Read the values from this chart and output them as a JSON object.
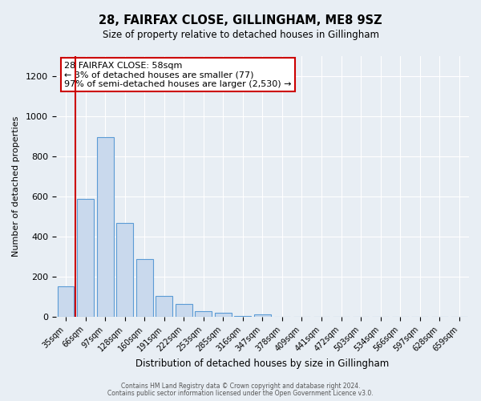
{
  "title": "28, FAIRFAX CLOSE, GILLINGHAM, ME8 9SZ",
  "subtitle": "Size of property relative to detached houses in Gillingham",
  "xlabel": "Distribution of detached houses by size in Gillingham",
  "ylabel": "Number of detached properties",
  "bar_color": "#c9d9ed",
  "bar_edge_color": "#5b9bd5",
  "background_color": "#e8eef4",
  "grid_color": "#ffffff",
  "annotation_box_color": "#ffffff",
  "annotation_box_edge": "#cc0000",
  "red_line_color": "#cc0000",
  "categories": [
    "35sqm",
    "66sqm",
    "97sqm",
    "128sqm",
    "160sqm",
    "191sqm",
    "222sqm",
    "253sqm",
    "285sqm",
    "316sqm",
    "347sqm",
    "378sqm",
    "409sqm",
    "441sqm",
    "472sqm",
    "503sqm",
    "534sqm",
    "566sqm",
    "597sqm",
    "628sqm",
    "659sqm"
  ],
  "values": [
    155,
    590,
    895,
    470,
    290,
    105,
    65,
    30,
    20,
    5,
    15,
    0,
    0,
    0,
    0,
    0,
    0,
    0,
    0,
    0,
    0
  ],
  "ylim": [
    0,
    1300
  ],
  "yticks": [
    0,
    200,
    400,
    600,
    800,
    1000,
    1200
  ],
  "annotation_text": "28 FAIRFAX CLOSE: 58sqm\n← 3% of detached houses are smaller (77)\n97% of semi-detached houses are larger (2,530) →",
  "footer_line1": "Contains HM Land Registry data © Crown copyright and database right 2024.",
  "footer_line2": "Contains public sector information licensed under the Open Government Licence v3.0."
}
